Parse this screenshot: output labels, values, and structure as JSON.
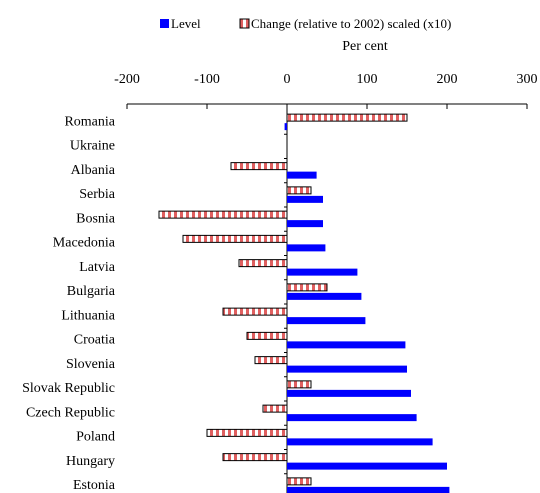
{
  "chart_data": {
    "type": "bar",
    "orientation": "horizontal",
    "x_label": "Per cent",
    "categories": [
      "Romania",
      "Ukraine",
      "Albania",
      "Serbia",
      "Bosnia",
      "Macedonia",
      "Latvia",
      "Bulgaria",
      "Lithuania",
      "Croatia",
      "Slovenia",
      "Slovak Republic",
      "Czech Republic",
      "Poland",
      "Hungary",
      "Estonia"
    ],
    "series": [
      {
        "name": "Change (relative to 2002) scaled (x10)",
        "color": "#e06060",
        "pattern": "hatched",
        "values": [
          150,
          null,
          -70,
          30,
          -160,
          -130,
          -60,
          50,
          -80,
          -50,
          -40,
          30,
          -30,
          -100,
          -80,
          30
        ]
      },
      {
        "name": "Level",
        "color": "#0000ff",
        "pattern": "solid",
        "values": [
          -3,
          null,
          37,
          45,
          45,
          48,
          88,
          93,
          98,
          148,
          150,
          155,
          162,
          182,
          200,
          203
        ]
      }
    ],
    "xlim": [
      -200,
      300
    ],
    "xticks": [
      -200,
      -100,
      0,
      100,
      200,
      300
    ]
  }
}
